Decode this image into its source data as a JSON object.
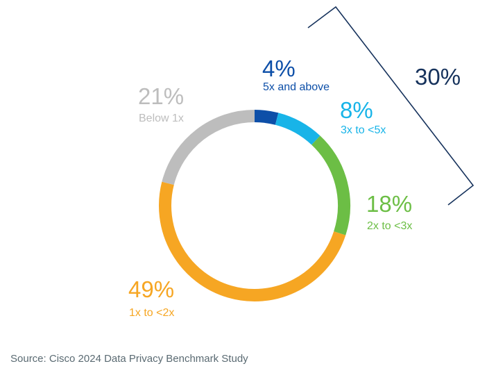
{
  "chart_data": {
    "type": "donut",
    "slices": [
      {
        "category": "5x and above",
        "value": 4,
        "label": "4%",
        "color": "#0d4fa8"
      },
      {
        "category": "3x to <5x",
        "value": 8,
        "label": "8%",
        "color": "#18b4e8"
      },
      {
        "category": "2x to <3x",
        "value": 18,
        "label": "18%",
        "color": "#6cbe45"
      },
      {
        "category": "1x to <2x",
        "value": 49,
        "label": "49%",
        "color": "#f6a623"
      },
      {
        "category": "Below 1x",
        "value": 21,
        "label": "21%",
        "color": "#bdbdbd"
      }
    ],
    "bracket": {
      "label": "30%",
      "color": "#16325c"
    }
  },
  "source": "Source: Cisco 2024 Data Privacy Benchmark Study"
}
